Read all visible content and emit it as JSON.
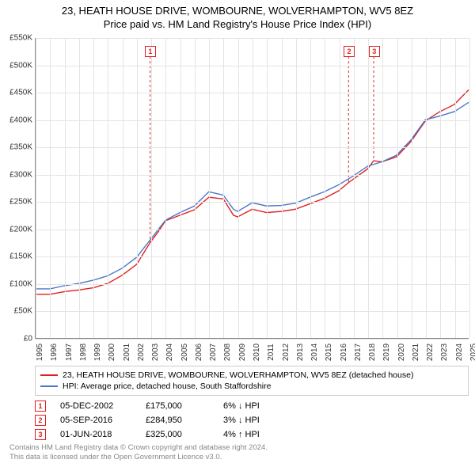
{
  "title": {
    "line1": "23, HEATH HOUSE DRIVE, WOMBOURNE, WOLVERHAMPTON, WV5 8EZ",
    "line2": "Price paid vs. HM Land Registry's House Price Index (HPI)",
    "fontsize": 13
  },
  "chart": {
    "type": "line",
    "background_color": "#ffffff",
    "grid_color": "#e4e4e4",
    "axis_color": "#888888",
    "ylim": [
      0,
      550000
    ],
    "ytick_step": 50000,
    "yticks": [
      "£0",
      "£50K",
      "£100K",
      "£150K",
      "£200K",
      "£250K",
      "£300K",
      "£350K",
      "£400K",
      "£450K",
      "£500K",
      "£550K"
    ],
    "xlim": [
      1995,
      2025
    ],
    "xticks": [
      1995,
      1996,
      1997,
      1998,
      1999,
      2000,
      2001,
      2002,
      2003,
      2004,
      2005,
      2006,
      2007,
      2008,
      2009,
      2010,
      2011,
      2012,
      2013,
      2014,
      2015,
      2016,
      2017,
      2018,
      2019,
      2020,
      2021,
      2022,
      2023,
      2024,
      2025
    ],
    "series": [
      {
        "name": "property",
        "label": "23, HEATH HOUSE DRIVE, WOMBOURNE, WOLVERHAMPTON, WV5 8EZ (detached house)",
        "color": "#e02020",
        "line_width": 1.4,
        "points": [
          [
            1995,
            80000
          ],
          [
            1996,
            80000
          ],
          [
            1997,
            85000
          ],
          [
            1998,
            88000
          ],
          [
            1999,
            92000
          ],
          [
            2000,
            100000
          ],
          [
            2001,
            115000
          ],
          [
            2002,
            135000
          ],
          [
            2002.93,
            175000
          ],
          [
            2003.5,
            195000
          ],
          [
            2004,
            215000
          ],
          [
            2005,
            225000
          ],
          [
            2006,
            235000
          ],
          [
            2007,
            258000
          ],
          [
            2008,
            255000
          ],
          [
            2008.7,
            225000
          ],
          [
            2009,
            222000
          ],
          [
            2010,
            236000
          ],
          [
            2011,
            230000
          ],
          [
            2012,
            232000
          ],
          [
            2013,
            236000
          ],
          [
            2014,
            246000
          ],
          [
            2015,
            256000
          ],
          [
            2016,
            270000
          ],
          [
            2016.68,
            284950
          ],
          [
            2017,
            291000
          ],
          [
            2018,
            310000
          ],
          [
            2018.42,
            325000
          ],
          [
            2019,
            323000
          ],
          [
            2020,
            332000
          ],
          [
            2021,
            360000
          ],
          [
            2022,
            398000
          ],
          [
            2023,
            415000
          ],
          [
            2024,
            428000
          ],
          [
            2025,
            455000
          ]
        ]
      },
      {
        "name": "hpi",
        "label": "HPI: Average price, detached house, South Staffordshire",
        "color": "#4a78c8",
        "line_width": 1.4,
        "points": [
          [
            1995,
            90000
          ],
          [
            1996,
            90000
          ],
          [
            1997,
            96000
          ],
          [
            1998,
            100000
          ],
          [
            1999,
            106000
          ],
          [
            2000,
            114000
          ],
          [
            2001,
            128000
          ],
          [
            2002,
            148000
          ],
          [
            2003,
            182000
          ],
          [
            2004,
            216000
          ],
          [
            2005,
            230000
          ],
          [
            2006,
            242000
          ],
          [
            2007,
            268000
          ],
          [
            2008,
            262000
          ],
          [
            2008.7,
            236000
          ],
          [
            2009,
            232000
          ],
          [
            2010,
            248000
          ],
          [
            2011,
            242000
          ],
          [
            2012,
            243000
          ],
          [
            2013,
            247000
          ],
          [
            2014,
            258000
          ],
          [
            2015,
            268000
          ],
          [
            2016,
            281000
          ],
          [
            2017,
            297000
          ],
          [
            2018,
            315000
          ],
          [
            2019,
            323000
          ],
          [
            2020,
            335000
          ],
          [
            2021,
            363000
          ],
          [
            2022,
            400000
          ],
          [
            2023,
            407000
          ],
          [
            2024,
            415000
          ],
          [
            2025,
            432000
          ]
        ]
      }
    ],
    "markers": [
      {
        "n": "1",
        "year": 2002.93,
        "ytop": 525000,
        "vline_to": 175000
      },
      {
        "n": "2",
        "year": 2016.68,
        "ytop": 525000,
        "vline_to": 284950
      },
      {
        "n": "3",
        "year": 2018.42,
        "ytop": 525000,
        "vline_to": 325000
      }
    ]
  },
  "legend": {
    "border_color": "#cccccc",
    "fontsize": 10.5,
    "items": [
      {
        "color": "#e02020",
        "label": "23, HEATH HOUSE DRIVE, WOMBOURNE, WOLVERHAMPTON, WV5 8EZ (detached house)"
      },
      {
        "color": "#4a78c8",
        "label": "HPI: Average price, detached house, South Staffordshire"
      }
    ]
  },
  "events": [
    {
      "n": "1",
      "date": "05-DEC-2002",
      "price": "£175,000",
      "hpi": "6% ↓ HPI"
    },
    {
      "n": "2",
      "date": "05-SEP-2016",
      "price": "£284,950",
      "hpi": "3% ↓ HPI"
    },
    {
      "n": "3",
      "date": "01-JUN-2018",
      "price": "£325,000",
      "hpi": "4% ↑ HPI"
    }
  ],
  "footer": {
    "line1": "Contains HM Land Registry data © Crown copyright and database right 2024.",
    "line2": "This data is licensed under the Open Government Licence v3.0.",
    "color": "#888888",
    "fontsize": 9.5
  }
}
